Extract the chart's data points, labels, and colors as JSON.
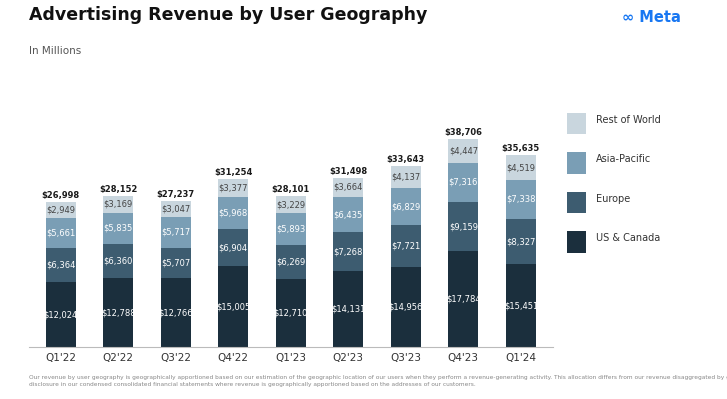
{
  "title": "Advertising Revenue by User Geography",
  "subtitle": "In Millions",
  "categories": [
    "Q1'22",
    "Q2'22",
    "Q3'22",
    "Q4'22",
    "Q1'23",
    "Q2'23",
    "Q3'23",
    "Q4'23",
    "Q1'24"
  ],
  "us_canada": [
    12024,
    12788,
    12766,
    15005,
    12710,
    14131,
    14956,
    17784,
    15451
  ],
  "europe": [
    6364,
    6360,
    5707,
    6904,
    6269,
    7268,
    7721,
    9159,
    8327
  ],
  "asia_pacific": [
    5661,
    5835,
    5717,
    5968,
    5893,
    6435,
    6829,
    7316,
    7338
  ],
  "rest_world": [
    2949,
    3169,
    3047,
    3377,
    3229,
    3664,
    4137,
    4447,
    4519
  ],
  "totals": [
    26998,
    28152,
    27237,
    31254,
    28101,
    31498,
    33643,
    38706,
    35635
  ],
  "color_us": "#1b2f3d",
  "color_eu": "#3d5c70",
  "color_ap": "#7a9eb5",
  "color_rw": "#c9d6de",
  "bg_color": "#ffffff",
  "bar_width": 0.52,
  "footnote": "Our revenue by user geography is geographically apportioned based on our estimation of the geographic location of our users when they perform a revenue-generating activity. This allocation differs from our revenue disaggregated by geography\ndisclosure in our condensed consolidated financial statements where revenue is geographically apportioned based on the addresses of our customers."
}
